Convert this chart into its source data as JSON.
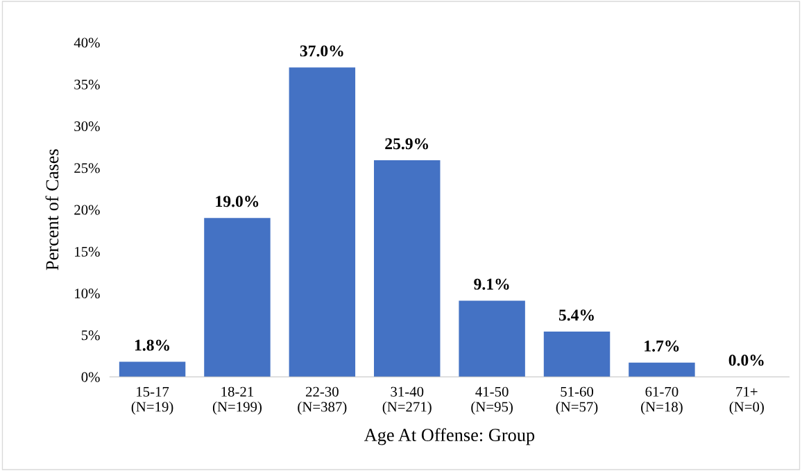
{
  "chart_data": {
    "type": "bar",
    "xlabel": "Age At Offense: Group",
    "ylabel": "Percent of Cases",
    "categories": [
      "15-17\n(N=19)",
      "18-21\n(N=199)",
      "22-30\n(N=387)",
      "31-40\n(N=271)",
      "41-50\n(N=95)",
      "51-60\n(N=57)",
      "61-70\n(N=18)",
      "71+\n(N=0)"
    ],
    "values": [
      1.8,
      19.0,
      37.0,
      25.9,
      9.1,
      5.4,
      1.7,
      0.0
    ],
    "value_labels": [
      "1.8%",
      "19.0%",
      "37.0%",
      "25.9%",
      "9.1%",
      "5.4%",
      "1.7%",
      "0.0%"
    ],
    "color": "#4472c4",
    "ylim": [
      0,
      40
    ],
    "yticks": [
      {
        "value": 0,
        "label": "0%"
      },
      {
        "value": 5,
        "label": "5%"
      },
      {
        "value": 10,
        "label": "10%"
      },
      {
        "value": 15,
        "label": "15%"
      },
      {
        "value": 20,
        "label": "20%"
      },
      {
        "value": 25,
        "label": "25%"
      },
      {
        "value": 30,
        "label": "30%"
      },
      {
        "value": 35,
        "label": "35%"
      },
      {
        "value": 40,
        "label": "40%"
      }
    ],
    "grid": false,
    "legend": false
  }
}
